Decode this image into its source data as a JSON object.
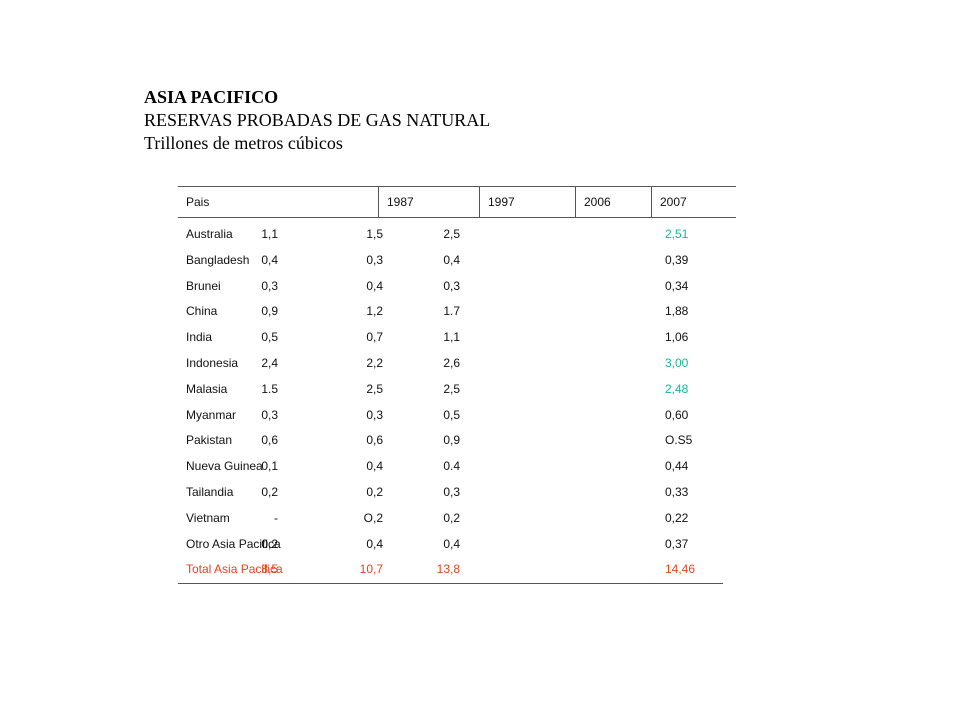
{
  "heading": {
    "line1": "ASIA PACIFICO",
    "line2": "RESERVAS PROBADAS DE GAS NATURAL",
    "line3": "Trillones de metros cúbicos"
  },
  "table": {
    "headers": [
      "Pais",
      "1987",
      "1997",
      "2006",
      "2007"
    ],
    "rows": [
      {
        "country": "Australia",
        "v1987": "1,1",
        "v1997": "1,5",
        "v2006": "2,5",
        "v2007": "2,51"
      },
      {
        "country": "Bangladesh",
        "v1987": "0,4",
        "v1997": "0,3",
        "v2006": "0,4",
        "v2007": "0,39"
      },
      {
        "country": "Brunei",
        "v1987": "0,3",
        "v1997": "0,4",
        "v2006": "0,3",
        "v2007": "0,34"
      },
      {
        "country": "China",
        "v1987": "0,9",
        "v1997": "1,2",
        "v2006": "1.7",
        "v2007": "1,88"
      },
      {
        "country": "India",
        "v1987": "0,5",
        "v1997": "0,7",
        "v2006": "1,1",
        "v2007": "1,06"
      },
      {
        "country": "Indonesia",
        "v1987": "2,4",
        "v1997": "2,2",
        "v2006": "2,6",
        "v2007": "3,00"
      },
      {
        "country": "Malasia",
        "v1987": "1.5",
        "v1997": "2,5",
        "v2006": "2,5",
        "v2007": "2,48"
      },
      {
        "country": "Myanmar",
        "v1987": "0,3",
        "v1997": "0,3",
        "v2006": "0,5",
        "v2007": "0,60"
      },
      {
        "country": "Pakistan",
        "v1987": "0,6",
        "v1997": "0,6",
        "v2006": "0,9",
        "v2007": "O.S5"
      },
      {
        "country": "Nueva Guinea",
        "v1987": "0,1",
        "v1997": "0,4",
        "v2006": "0.4",
        "v2007": "0,44"
      },
      {
        "country": "Tailandia",
        "v1987": "0,2",
        "v1997": "0,2",
        "v2006": "0,3",
        "v2007": "0,33"
      },
      {
        "country": "Vietnam",
        "v1987": "-",
        "v1997": "O,2",
        "v2006": "0,2",
        "v2007": "0,22"
      },
      {
        "country": "Otro Asia Pacifica",
        "v1987": "0,2",
        "v1997": "0,4",
        "v2006": "0,4",
        "v2007": "0,37"
      }
    ],
    "total": {
      "country": "Total Asia Pacifica",
      "v1987": "8,5",
      "v1997": "10,7",
      "v2006": "13,8",
      "v2007": "14,46"
    }
  },
  "colors": {
    "highlight_green": "#17b59a",
    "total_red": "#e0461e"
  }
}
